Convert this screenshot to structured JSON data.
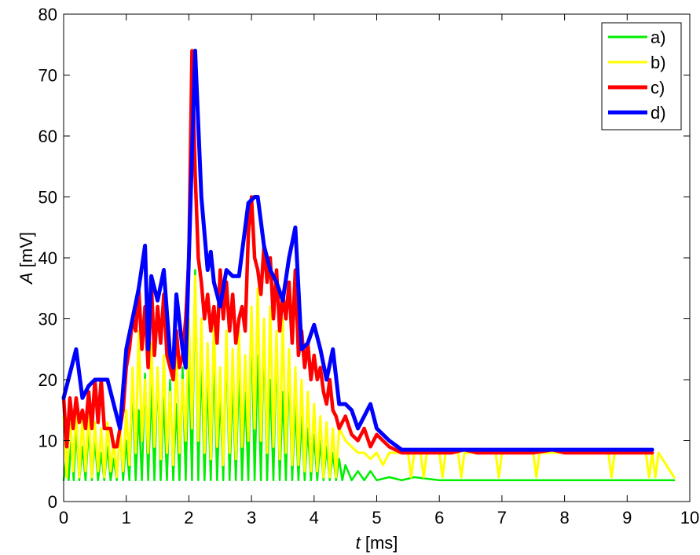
{
  "chart_data": {
    "type": "line",
    "title": "",
    "xlabel": {
      "var": "t",
      "unit": " [ms]"
    },
    "ylabel": {
      "var": "A",
      "unit": " [mV]"
    },
    "xlim": [
      0,
      10
    ],
    "ylim": [
      0,
      80
    ],
    "x_ticks": [
      "0",
      "1",
      "2",
      "3",
      "4",
      "5",
      "6",
      "7",
      "8",
      "9",
      "10"
    ],
    "y_ticks": [
      "0",
      "10",
      "20",
      "30",
      "40",
      "50",
      "60",
      "70",
      "80"
    ],
    "grid": false,
    "legend_position": "top-right",
    "series": [
      {
        "name": "a)",
        "color": "#00ee00",
        "x": [
          0,
          0.05,
          0.08,
          0.12,
          0.16,
          0.2,
          0.25,
          0.3,
          0.35,
          0.4,
          0.45,
          0.5,
          0.55,
          0.6,
          0.65,
          0.7,
          0.75,
          0.8,
          0.85,
          0.9,
          0.95,
          1.0,
          1.05,
          1.1,
          1.15,
          1.2,
          1.25,
          1.3,
          1.35,
          1.4,
          1.45,
          1.5,
          1.55,
          1.6,
          1.65,
          1.7,
          1.75,
          1.8,
          1.85,
          1.9,
          1.95,
          2.0,
          2.05,
          2.1,
          2.15,
          2.2,
          2.25,
          2.3,
          2.35,
          2.4,
          2.45,
          2.5,
          2.55,
          2.6,
          2.65,
          2.7,
          2.75,
          2.8,
          2.85,
          2.9,
          2.95,
          3.0,
          3.05,
          3.1,
          3.15,
          3.2,
          3.25,
          3.3,
          3.35,
          3.4,
          3.45,
          3.5,
          3.55,
          3.6,
          3.65,
          3.7,
          3.75,
          3.8,
          3.85,
          3.9,
          3.95,
          4.0,
          4.05,
          4.1,
          4.15,
          4.2,
          4.25,
          4.3,
          4.35,
          4.4,
          4.45,
          4.5,
          4.6,
          4.7,
          4.8,
          4.9,
          5.0,
          5.2,
          5.4,
          5.6,
          6.0,
          6.5,
          7.0,
          8.0,
          9.0,
          9.5,
          9.75
        ],
        "y": [
          3.5,
          8,
          3.5,
          10,
          3.5,
          12,
          3.5,
          9,
          3.5,
          12,
          3.5,
          10,
          3.5,
          8,
          3.5,
          9,
          3.5,
          7,
          3.5,
          12,
          3.5,
          10,
          3.5,
          19,
          3.5,
          15,
          3.5,
          21,
          3.5,
          19,
          3.5,
          22,
          3.5,
          17,
          3.5,
          20,
          3.5,
          16,
          3.5,
          22,
          3.5,
          25,
          3.5,
          38,
          3.5,
          24,
          3.5,
          20,
          3.5,
          24,
          3.5,
          18,
          3.5,
          26,
          3.5,
          20,
          3.5,
          22,
          3.5,
          18,
          3.5,
          30,
          3.5,
          24,
          3.5,
          28,
          3.5,
          20,
          3.5,
          26,
          3.5,
          18,
          3.5,
          22,
          3.5,
          16,
          3.5,
          14,
          3.5,
          12,
          3.5,
          11,
          3.5,
          10,
          3.5,
          9,
          3.5,
          8,
          3.5,
          7,
          3.5,
          6,
          3.5,
          5,
          3.5,
          5,
          3.5,
          4,
          3.5,
          4,
          3.5,
          3.5,
          3.5,
          3.5,
          3.5,
          3.5,
          3.5
        ]
      },
      {
        "name": "b)",
        "color": "#ffff00",
        "x": [
          0,
          0.05,
          0.1,
          0.15,
          0.2,
          0.25,
          0.3,
          0.35,
          0.4,
          0.45,
          0.5,
          0.55,
          0.6,
          0.65,
          0.7,
          0.75,
          0.8,
          0.85,
          0.9,
          0.95,
          1.0,
          1.05,
          1.1,
          1.15,
          1.2,
          1.25,
          1.3,
          1.35,
          1.4,
          1.45,
          1.5,
          1.55,
          1.6,
          1.65,
          1.7,
          1.75,
          1.8,
          1.85,
          1.9,
          1.95,
          2.0,
          2.05,
          2.1,
          2.15,
          2.2,
          2.25,
          2.3,
          2.35,
          2.4,
          2.45,
          2.5,
          2.55,
          2.6,
          2.65,
          2.7,
          2.75,
          2.8,
          2.85,
          2.9,
          2.95,
          3.0,
          3.05,
          3.1,
          3.15,
          3.2,
          3.25,
          3.3,
          3.35,
          3.4,
          3.45,
          3.5,
          3.55,
          3.6,
          3.65,
          3.7,
          3.75,
          3.8,
          3.85,
          3.9,
          3.95,
          4.0,
          4.05,
          4.1,
          4.15,
          4.2,
          4.25,
          4.3,
          4.35,
          4.4,
          4.5,
          4.6,
          4.7,
          4.8,
          4.9,
          5.0,
          5.1,
          5.2,
          5.4,
          5.5,
          5.55,
          5.6,
          5.7,
          5.75,
          5.8,
          6.0,
          6.05,
          6.1,
          6.3,
          6.35,
          6.4,
          6.9,
          6.95,
          7.0,
          7.5,
          7.55,
          7.6,
          8.7,
          8.75,
          8.8,
          9.3,
          9.35,
          9.4,
          9.45,
          9.5,
          9.75
        ],
        "y": [
          14,
          4,
          15,
          5,
          16,
          4,
          14,
          5,
          15,
          4,
          13,
          5,
          12,
          4,
          13,
          5,
          10,
          4,
          12,
          5,
          15,
          6,
          22,
          8,
          28,
          10,
          20,
          8,
          26,
          9,
          22,
          7,
          24,
          8,
          18,
          6,
          25,
          8,
          20,
          10,
          30,
          12,
          37,
          10,
          30,
          8,
          26,
          7,
          30,
          9,
          22,
          6,
          28,
          8,
          25,
          7,
          28,
          9,
          24,
          10,
          32,
          12,
          35,
          10,
          30,
          8,
          32,
          9,
          28,
          7,
          30,
          8,
          25,
          6,
          22,
          6,
          20,
          5,
          18,
          5,
          16,
          5,
          14,
          4,
          13,
          4,
          12,
          4,
          12,
          10,
          9,
          8,
          8,
          7,
          8,
          6,
          8,
          8,
          8,
          4,
          8,
          8,
          4,
          8,
          8,
          4,
          8,
          8,
          4,
          8,
          8,
          4,
          8,
          8,
          4,
          8,
          8,
          4,
          8,
          8,
          4,
          8,
          4,
          8,
          4
        ]
      },
      {
        "name": "c)",
        "color": "#ff0000",
        "x": [
          0,
          0.05,
          0.1,
          0.15,
          0.2,
          0.25,
          0.3,
          0.35,
          0.4,
          0.45,
          0.5,
          0.55,
          0.6,
          0.65,
          0.7,
          0.75,
          0.8,
          0.85,
          0.9,
          0.95,
          1.0,
          1.05,
          1.1,
          1.15,
          1.2,
          1.25,
          1.3,
          1.35,
          1.4,
          1.45,
          1.5,
          1.55,
          1.6,
          1.65,
          1.7,
          1.75,
          1.8,
          1.85,
          1.9,
          1.95,
          2.0,
          2.05,
          2.1,
          2.15,
          2.2,
          2.25,
          2.3,
          2.35,
          2.4,
          2.45,
          2.5,
          2.55,
          2.6,
          2.65,
          2.7,
          2.75,
          2.8,
          2.85,
          2.9,
          2.95,
          3.0,
          3.05,
          3.1,
          3.15,
          3.2,
          3.25,
          3.3,
          3.35,
          3.4,
          3.45,
          3.5,
          3.55,
          3.6,
          3.65,
          3.7,
          3.75,
          3.8,
          3.85,
          3.9,
          3.95,
          4.0,
          4.05,
          4.1,
          4.15,
          4.2,
          4.25,
          4.3,
          4.35,
          4.4,
          4.5,
          4.6,
          4.7,
          4.8,
          4.9,
          5.0,
          5.2,
          5.4,
          5.6,
          6.0,
          6.2,
          6.4,
          6.6,
          7.0,
          7.5,
          7.8,
          8.0,
          8.5,
          9.0,
          9.4
        ],
        "y": [
          17,
          9,
          17,
          12,
          17,
          13,
          15,
          12,
          18,
          12,
          20,
          13,
          20,
          12,
          12,
          12,
          9,
          9,
          12,
          15,
          22,
          25,
          30,
          28,
          35,
          25,
          32,
          22,
          36,
          24,
          32,
          26,
          34,
          24,
          22,
          20,
          28,
          22,
          24,
          30,
          40,
          74,
          54,
          40,
          36,
          30,
          34,
          28,
          32,
          26,
          38,
          30,
          36,
          28,
          34,
          26,
          30,
          32,
          28,
          44,
          50,
          40,
          38,
          34,
          42,
          36,
          40,
          30,
          38,
          28,
          34,
          30,
          36,
          26,
          38,
          24,
          28,
          22,
          26,
          20,
          24,
          20,
          22,
          18,
          16,
          20,
          15,
          14,
          12,
          14,
          11,
          10,
          12,
          9,
          11,
          9,
          8,
          8,
          8,
          8,
          8.5,
          8,
          8,
          8,
          8.5,
          8,
          8,
          8,
          8
        ]
      },
      {
        "name": "d)",
        "color": "#0000ff",
        "x": [
          0,
          0.2,
          0.3,
          0.4,
          0.5,
          0.6,
          0.7,
          0.85,
          0.9,
          1.0,
          1.1,
          1.2,
          1.3,
          1.35,
          1.4,
          1.5,
          1.6,
          1.7,
          1.75,
          1.8,
          1.9,
          1.95,
          2.0,
          2.1,
          2.2,
          2.3,
          2.35,
          2.4,
          2.5,
          2.6,
          2.7,
          2.8,
          2.95,
          3.05,
          3.1,
          3.2,
          3.3,
          3.4,
          3.5,
          3.6,
          3.7,
          3.8,
          3.9,
          4.0,
          4.1,
          4.2,
          4.3,
          4.4,
          4.5,
          4.6,
          4.7,
          4.8,
          4.9,
          5.0,
          5.2,
          5.4,
          5.6,
          6.0,
          7.0,
          8.0,
          9.0,
          9.4
        ],
        "y": [
          17,
          25,
          17,
          19,
          20,
          20,
          20,
          14,
          12,
          25,
          30,
          35,
          42,
          25,
          37,
          33,
          38,
          24,
          22,
          34,
          25,
          22,
          40,
          74,
          50,
          38,
          41,
          36,
          32,
          38,
          37,
          37,
          49,
          50,
          50,
          42,
          38,
          36,
          33,
          40,
          45,
          25,
          26,
          29,
          25,
          20,
          25,
          16,
          16,
          15,
          12,
          14,
          16,
          12,
          10,
          8.5,
          8.5,
          8.5,
          8.5,
          8.5,
          8.5,
          8.5
        ]
      }
    ]
  }
}
